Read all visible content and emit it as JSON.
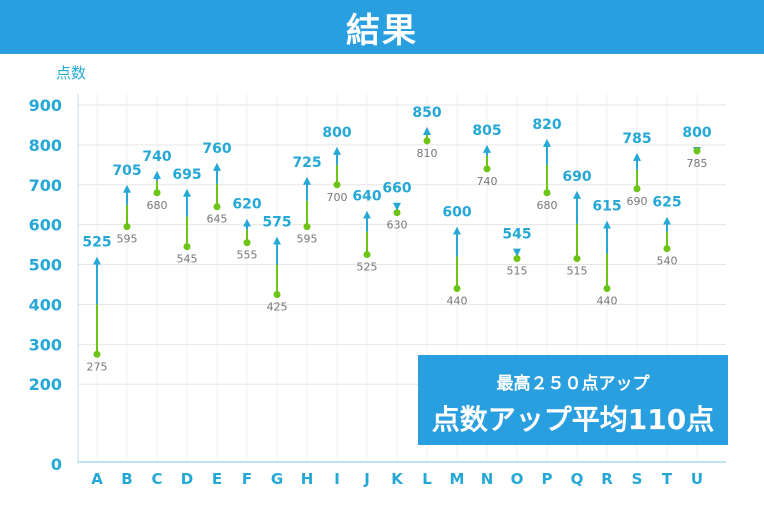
{
  "header": {
    "title": "結果"
  },
  "summary": {
    "line1": "最高２５０点アップ",
    "line2": "点数アップ平均110点"
  },
  "colors": {
    "accent": "#2a9fe0",
    "before": "#6cc417",
    "after": "#25a8d6",
    "grid": "#e6e6e6"
  },
  "chart_data": {
    "type": "dumbbell",
    "title": "",
    "ylabel": "点数",
    "ylim": [
      0,
      900
    ],
    "yticks": [
      0,
      200,
      300,
      400,
      500,
      600,
      700,
      800,
      900
    ],
    "categories": [
      "A",
      "B",
      "C",
      "D",
      "E",
      "F",
      "G",
      "H",
      "I",
      "J",
      "K",
      "L",
      "M",
      "N",
      "O",
      "P",
      "Q",
      "R",
      "S",
      "T",
      "U"
    ],
    "series": [
      {
        "values": [
          275,
          595,
          680,
          545,
          645,
          555,
          425,
          595,
          700,
          525,
          630,
          810,
          440,
          740,
          515,
          680,
          515,
          440,
          690,
          540,
          785
        ]
      },
      {
        "values": [
          525,
          705,
          740,
          695,
          760,
          620,
          575,
          725,
          800,
          640,
          660,
          850,
          600,
          805,
          545,
          820,
          690,
          615,
          785,
          625,
          800
        ]
      }
    ]
  }
}
